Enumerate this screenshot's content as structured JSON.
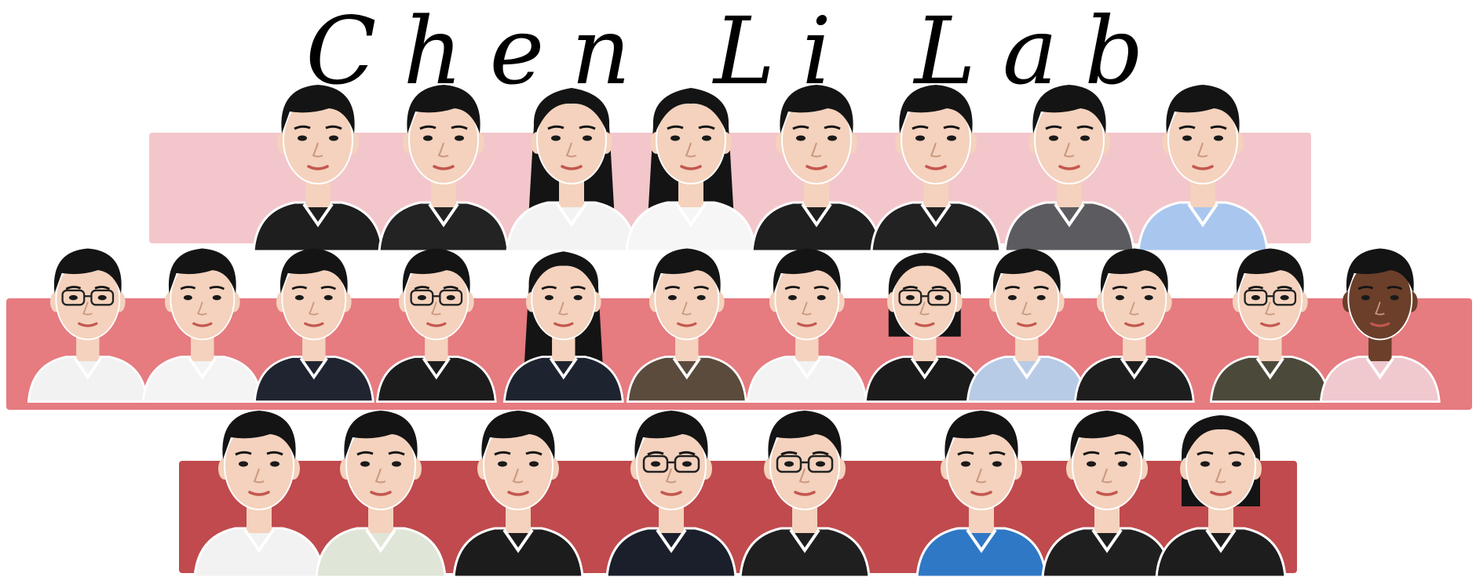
{
  "title": "Chen Li Lab",
  "colors": {
    "band_1": "#f3c6cb",
    "band_2": "#e67b80",
    "band_3": "#c04a4d",
    "skin": "#f4d2bd",
    "skin_dark": "#6b3f2a",
    "hair": "#141414"
  },
  "rows": [
    {
      "name": "top-row",
      "portraits": [
        {
          "icon": "portrait-man-icon",
          "shirt": "#1e1e1e",
          "hair": "short",
          "glasses": false,
          "skin": "light"
        },
        {
          "icon": "portrait-man-icon",
          "shirt": "#232323",
          "hair": "short",
          "glasses": false,
          "skin": "light"
        },
        {
          "icon": "portrait-woman-icon",
          "shirt": "#f3f3f3",
          "hair": "long",
          "glasses": false,
          "skin": "light"
        },
        {
          "icon": "portrait-woman-icon",
          "shirt": "#f6f6f6",
          "hair": "long",
          "glasses": false,
          "skin": "light"
        },
        {
          "icon": "portrait-man-icon",
          "shirt": "#1f1f1f",
          "hair": "short",
          "glasses": false,
          "skin": "light"
        },
        {
          "icon": "portrait-man-icon",
          "shirt": "#222222",
          "hair": "short",
          "glasses": false,
          "skin": "light"
        },
        {
          "icon": "portrait-man-icon",
          "shirt": "#5b5b60",
          "hair": "short",
          "glasses": false,
          "skin": "light"
        },
        {
          "icon": "portrait-man-icon",
          "shirt": "#a9c7ee",
          "hair": "short",
          "glasses": false,
          "skin": "light"
        }
      ]
    },
    {
      "name": "middle-row",
      "portraits": [
        {
          "icon": "portrait-man-icon",
          "shirt": "#f2f2f2",
          "hair": "short",
          "glasses": true,
          "skin": "light"
        },
        {
          "icon": "portrait-man-icon",
          "shirt": "#f4f4f4",
          "hair": "short",
          "glasses": false,
          "skin": "light"
        },
        {
          "icon": "portrait-man-icon",
          "shirt": "#1f2430",
          "hair": "short",
          "glasses": false,
          "skin": "light"
        },
        {
          "icon": "portrait-man-icon",
          "shirt": "#1c1c1c",
          "hair": "short",
          "glasses": true,
          "skin": "light"
        },
        {
          "icon": "portrait-woman-icon",
          "shirt": "#1d2430",
          "hair": "long",
          "glasses": false,
          "skin": "light"
        },
        {
          "icon": "portrait-man-icon",
          "shirt": "#5a4b3c",
          "hair": "short",
          "glasses": false,
          "skin": "light"
        },
        {
          "icon": "portrait-man-icon",
          "shirt": "#f3f3f3",
          "hair": "short",
          "glasses": false,
          "skin": "light"
        },
        {
          "icon": "portrait-woman-icon",
          "shirt": "#1b1b1b",
          "hair": "bob",
          "glasses": true,
          "skin": "light"
        },
        {
          "icon": "portrait-man-icon",
          "shirt": "#b8cbe6",
          "hair": "short",
          "glasses": false,
          "skin": "light"
        },
        {
          "icon": "portrait-man-icon",
          "shirt": "#1e1e1e",
          "hair": "short",
          "glasses": false,
          "skin": "light"
        },
        {
          "icon": "portrait-man-icon",
          "shirt": "#4b4a3a",
          "hair": "short",
          "glasses": true,
          "skin": "light"
        },
        {
          "icon": "portrait-man-icon",
          "shirt": "#f0c9cf",
          "hair": "short",
          "glasses": false,
          "skin": "dark"
        }
      ]
    },
    {
      "name": "bottom-row",
      "portraits": [
        {
          "icon": "portrait-man-icon",
          "shirt": "#f2f2f2",
          "hair": "short",
          "glasses": false,
          "skin": "light"
        },
        {
          "icon": "portrait-man-icon",
          "shirt": "#dfe6d8",
          "hair": "short",
          "glasses": false,
          "skin": "light"
        },
        {
          "icon": "portrait-man-icon",
          "shirt": "#1c1c1c",
          "hair": "short",
          "glasses": false,
          "skin": "light"
        },
        {
          "icon": "portrait-man-icon",
          "shirt": "#1a1f2b",
          "hair": "short",
          "glasses": true,
          "skin": "light"
        },
        {
          "icon": "portrait-man-icon",
          "shirt": "#1f1f1f",
          "hair": "short",
          "glasses": true,
          "skin": "light"
        },
        {
          "icon": "portrait-man-icon",
          "shirt": "#2f78c6",
          "hair": "short",
          "glasses": false,
          "skin": "light"
        },
        {
          "icon": "portrait-man-icon",
          "shirt": "#1f1f1f",
          "hair": "short",
          "glasses": false,
          "skin": "light"
        },
        {
          "icon": "portrait-woman-icon",
          "shirt": "#1d1d1d",
          "hair": "bob",
          "glasses": false,
          "skin": "light"
        }
      ]
    }
  ]
}
